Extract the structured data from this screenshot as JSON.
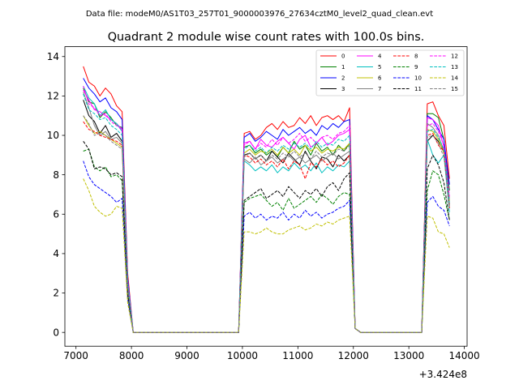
{
  "figure": {
    "suptitle": "Data file: modeM0/AS1T03_257T01_9000003976_27634cztM0_level2_quad_clean.evt"
  },
  "chart_data": {
    "type": "line",
    "title": "Quadrant 2 module wise count rates with 100.0s bins.",
    "xlabel": "",
    "ylabel": "",
    "x_offset_label": "+3.424e8",
    "xlim": [
      6800,
      14050
    ],
    "ylim": [
      -0.7,
      14.5
    ],
    "xticks": [
      7000,
      8000,
      9000,
      10000,
      11000,
      12000,
      13000,
      14000
    ],
    "xtick_labels": [
      "7000",
      "8000",
      "9000",
      "10000",
      "11000",
      "12000",
      "13000",
      "14000"
    ],
    "yticks": [
      0,
      2,
      4,
      6,
      8,
      10,
      12,
      14
    ],
    "ytick_labels": [
      "0",
      "2",
      "4",
      "6",
      "8",
      "10",
      "12",
      "14"
    ],
    "grid": false,
    "legend_position": "upper right",
    "legend_columns": 4,
    "x": [
      7132,
      7232,
      7332,
      7432,
      7532,
      7632,
      7732,
      7832,
      7932,
      8032,
      8132,
      8232,
      8332,
      8432,
      8532,
      8632,
      8732,
      8832,
      8932,
      9032,
      9132,
      9232,
      9332,
      9432,
      9532,
      9632,
      9732,
      9832,
      9932,
      10032,
      10132,
      10232,
      10332,
      10432,
      10532,
      10632,
      10732,
      10832,
      10932,
      11032,
      11132,
      11232,
      11332,
      11432,
      11532,
      11632,
      11732,
      11832,
      11932,
      12032,
      12132,
      12232,
      12332,
      12432,
      12532,
      12632,
      12732,
      12832,
      12932,
      13032,
      13132,
      13232,
      13332,
      13432,
      13532,
      13632,
      13732
    ],
    "series": [
      {
        "name": "0",
        "color": "#ff0000",
        "dash": "solid",
        "values": [
          13.5,
          12.7,
          12.5,
          12.0,
          12.4,
          12.1,
          11.5,
          11.2,
          3.0,
          0,
          0,
          0,
          0,
          0,
          0,
          0,
          0,
          0,
          0,
          0,
          0,
          0,
          0,
          0,
          0,
          0,
          0,
          0,
          0,
          10.1,
          10.2,
          9.8,
          10.0,
          10.4,
          10.6,
          10.3,
          10.7,
          10.4,
          10.5,
          10.9,
          10.6,
          11.0,
          10.5,
          10.9,
          11.0,
          10.8,
          11.0,
          10.7,
          11.4,
          0.2,
          0,
          0,
          0,
          0,
          0,
          0,
          0,
          0,
          0,
          0,
          0,
          0,
          11.6,
          11.7,
          11.0,
          10.5,
          7.8
        ]
      },
      {
        "name": "1",
        "color": "#008000",
        "dash": "solid",
        "values": [
          12.4,
          11.7,
          11.6,
          10.9,
          11.2,
          10.9,
          10.5,
          10.4,
          2.5,
          0,
          0,
          0,
          0,
          0,
          0,
          0,
          0,
          0,
          0,
          0,
          0,
          0,
          0,
          0,
          0,
          0,
          0,
          0,
          0,
          9.4,
          9.5,
          9.1,
          9.3,
          9.0,
          9.2,
          8.9,
          9.4,
          9.1,
          9.7,
          9.3,
          9.5,
          9.0,
          9.6,
          9.2,
          9.4,
          9.0,
          9.5,
          9.2,
          9.6,
          0.2,
          0,
          0,
          0,
          0,
          0,
          0,
          0,
          0,
          0,
          0,
          0,
          0,
          11.1,
          11.1,
          10.9,
          9.8,
          7.2
        ]
      },
      {
        "name": "2",
        "color": "#0000ff",
        "dash": "solid",
        "values": [
          12.9,
          12.4,
          12.1,
          11.7,
          11.9,
          11.4,
          11.2,
          10.8,
          2.8,
          0,
          0,
          0,
          0,
          0,
          0,
          0,
          0,
          0,
          0,
          0,
          0,
          0,
          0,
          0,
          0,
          0,
          0,
          0,
          0,
          9.9,
          10.1,
          9.7,
          9.9,
          10.2,
          10.0,
          9.8,
          10.3,
          10.0,
          10.2,
          10.4,
          10.1,
          10.3,
          10.0,
          10.5,
          10.3,
          10.6,
          10.4,
          10.7,
          10.8,
          0.2,
          0,
          0,
          0,
          0,
          0,
          0,
          0,
          0,
          0,
          0,
          0,
          0,
          11.0,
          10.8,
          10.3,
          9.8,
          7.5
        ]
      },
      {
        "name": "3",
        "color": "#000000",
        "dash": "solid",
        "values": [
          11.8,
          11.0,
          10.7,
          10.1,
          10.5,
          9.9,
          10.1,
          9.7,
          2.4,
          0,
          0,
          0,
          0,
          0,
          0,
          0,
          0,
          0,
          0,
          0,
          0,
          0,
          0,
          0,
          0,
          0,
          0,
          0,
          0,
          9.0,
          9.1,
          8.8,
          9.0,
          8.7,
          9.2,
          8.9,
          8.6,
          9.1,
          8.8,
          8.5,
          9.2,
          8.7,
          8.3,
          8.9,
          8.8,
          8.4,
          9.0,
          8.7,
          9.0,
          0.2,
          0,
          0,
          0,
          0,
          0,
          0,
          0,
          0,
          0,
          0,
          0,
          0,
          9.7,
          10.0,
          9.7,
          9.2,
          6.5
        ]
      },
      {
        "name": "4",
        "color": "#ff00ff",
        "dash": "solid",
        "values": [
          12.3,
          11.8,
          11.3,
          11.2,
          11.0,
          10.8,
          10.6,
          10.3,
          2.6,
          0,
          0,
          0,
          0,
          0,
          0,
          0,
          0,
          0,
          0,
          0,
          0,
          0,
          0,
          0,
          0,
          0,
          0,
          0,
          0,
          9.6,
          9.7,
          9.3,
          9.8,
          9.5,
          9.4,
          9.7,
          9.9,
          9.6,
          9.3,
          9.8,
          10.0,
          9.4,
          9.6,
          9.9,
          9.5,
          9.7,
          10.0,
          10.1,
          10.3,
          0.2,
          0,
          0,
          0,
          0,
          0,
          0,
          0,
          0,
          0,
          0,
          0,
          0,
          10.9,
          10.8,
          10.5,
          9.4,
          6.8
        ]
      },
      {
        "name": "5",
        "color": "#00c0c0",
        "dash": "solid",
        "values": [
          12.5,
          11.9,
          11.6,
          11.0,
          11.3,
          10.8,
          10.6,
          10.2,
          2.6,
          0,
          0,
          0,
          0,
          0,
          0,
          0,
          0,
          0,
          0,
          0,
          0,
          0,
          0,
          0,
          0,
          0,
          0,
          0,
          0,
          8.7,
          8.5,
          8.2,
          8.4,
          8.2,
          8.5,
          8.1,
          8.4,
          8.2,
          8.6,
          8.3,
          8.5,
          8.2,
          8.6,
          8.1,
          8.4,
          8.2,
          8.5,
          8.4,
          8.7,
          0.2,
          0,
          0,
          0,
          0,
          0,
          0,
          0,
          0,
          0,
          0,
          0,
          0,
          9.8,
          9.0,
          8.6,
          9.0,
          6.1
        ]
      },
      {
        "name": "6",
        "color": "#c0c000",
        "dash": "solid",
        "values": [
          11.0,
          10.5,
          10.1,
          10.2,
          10.0,
          9.8,
          9.6,
          9.4,
          2.3,
          0,
          0,
          0,
          0,
          0,
          0,
          0,
          0,
          0,
          0,
          0,
          0,
          0,
          0,
          0,
          0,
          0,
          0,
          0,
          0,
          9.1,
          9.3,
          9.0,
          9.2,
          9.1,
          9.3,
          9.0,
          9.4,
          9.1,
          9.3,
          9.0,
          9.5,
          9.2,
          9.4,
          9.1,
          9.3,
          9.2,
          9.4,
          9.3,
          9.6,
          0.2,
          0,
          0,
          0,
          0,
          0,
          0,
          0,
          0,
          0,
          0,
          0,
          0,
          10.3,
          10.2,
          9.8,
          9.1,
          6.7
        ]
      },
      {
        "name": "7",
        "color": "#808080",
        "dash": "solid",
        "values": [
          12.2,
          11.4,
          10.5,
          10.0,
          10.2,
          9.8,
          9.9,
          9.6,
          2.4,
          0,
          0,
          0,
          0,
          0,
          0,
          0,
          0,
          0,
          0,
          0,
          0,
          0,
          0,
          0,
          0,
          0,
          0,
          0,
          0,
          8.8,
          8.6,
          8.9,
          8.5,
          8.7,
          8.9,
          8.6,
          8.8,
          9.0,
          8.7,
          8.9,
          8.6,
          8.8,
          9.0,
          8.7,
          8.9,
          9.1,
          8.8,
          9.0,
          9.2,
          0.2,
          0,
          0,
          0,
          0,
          0,
          0,
          0,
          0,
          0,
          0,
          0,
          0,
          10.6,
          10.4,
          10.0,
          9.2,
          6.4
        ]
      },
      {
        "name": "8",
        "color": "#ff0000",
        "dash": "dashed",
        "values": [
          10.7,
          10.3,
          10.2,
          10.0,
          9.9,
          9.8,
          9.7,
          9.5,
          2.4,
          0,
          0,
          0,
          0,
          0,
          0,
          0,
          0,
          0,
          0,
          0,
          0,
          0,
          0,
          0,
          0,
          0,
          0,
          0,
          0,
          9.0,
          8.9,
          8.6,
          8.8,
          8.5,
          8.7,
          8.4,
          8.8,
          8.3,
          8.7,
          8.5,
          7.8,
          8.6,
          8.4,
          8.8,
          8.5,
          8.7,
          8.4,
          8.6,
          9.0,
          0.2,
          0,
          0,
          0,
          0,
          0,
          0,
          0,
          0,
          0,
          0,
          0,
          0,
          10.0,
          10.1,
          9.5,
          9.2,
          6.3
        ]
      },
      {
        "name": "9",
        "color": "#008000",
        "dash": "dashed",
        "values": [
          9.2,
          9.3,
          8.4,
          8.2,
          8.4,
          7.9,
          8.0,
          7.7,
          1.9,
          0,
          0,
          0,
          0,
          0,
          0,
          0,
          0,
          0,
          0,
          0,
          0,
          0,
          0,
          0,
          0,
          0,
          0,
          0,
          0,
          6.6,
          6.8,
          6.9,
          7.0,
          6.7,
          6.4,
          6.6,
          6.2,
          6.8,
          6.3,
          6.5,
          6.7,
          6.9,
          6.6,
          7.0,
          6.8,
          6.5,
          6.9,
          7.1,
          7.0,
          0.2,
          0,
          0,
          0,
          0,
          0,
          0,
          0,
          0,
          0,
          0,
          0,
          0,
          7.2,
          8.2,
          8.0,
          7.0,
          5.7
        ]
      },
      {
        "name": "10",
        "color": "#0000ff",
        "dash": "dashed",
        "values": [
          8.7,
          7.9,
          7.5,
          7.3,
          7.1,
          6.9,
          6.6,
          6.8,
          1.7,
          0,
          0,
          0,
          0,
          0,
          0,
          0,
          0,
          0,
          0,
          0,
          0,
          0,
          0,
          0,
          0,
          0,
          0,
          0,
          0,
          5.9,
          6.1,
          5.8,
          6.0,
          5.7,
          5.9,
          5.8,
          6.1,
          5.7,
          6.0,
          5.8,
          6.2,
          5.9,
          6.1,
          5.8,
          6.0,
          6.1,
          6.3,
          6.4,
          6.7,
          0.2,
          0,
          0,
          0,
          0,
          0,
          0,
          0,
          0,
          0,
          0,
          0,
          0,
          6.6,
          6.9,
          6.4,
          6.2,
          5.4
        ]
      },
      {
        "name": "11",
        "color": "#000000",
        "dash": "dashed",
        "values": [
          9.7,
          9.3,
          8.3,
          8.4,
          8.3,
          8.0,
          8.1,
          7.9,
          2.0,
          0,
          0,
          0,
          0,
          0,
          0,
          0,
          0,
          0,
          0,
          0,
          0,
          0,
          0,
          0,
          0,
          0,
          0,
          0,
          0,
          6.7,
          6.9,
          7.1,
          7.3,
          6.8,
          7.0,
          7.2,
          6.9,
          7.4,
          7.1,
          6.8,
          7.2,
          7.0,
          7.3,
          6.9,
          7.4,
          7.6,
          7.2,
          7.8,
          8.1,
          0.2,
          0,
          0,
          0,
          0,
          0,
          0,
          0,
          0,
          0,
          0,
          0,
          0,
          8.3,
          9.0,
          8.5,
          7.6,
          5.7
        ]
      },
      {
        "name": "12",
        "color": "#ff00ff",
        "dash": "dashed",
        "values": [
          12.5,
          11.6,
          11.4,
          11.0,
          11.1,
          10.7,
          10.5,
          10.3,
          2.6,
          0,
          0,
          0,
          0,
          0,
          0,
          0,
          0,
          0,
          0,
          0,
          0,
          0,
          0,
          0,
          0,
          0,
          0,
          0,
          0,
          9.5,
          9.7,
          9.3,
          9.6,
          9.4,
          9.8,
          9.5,
          9.9,
          9.6,
          9.8,
          10.1,
          9.7,
          9.9,
          9.6,
          9.9,
          10.0,
          9.8,
          10.1,
          10.2,
          10.5,
          0.2,
          0,
          0,
          0,
          0,
          0,
          0,
          0,
          0,
          0,
          0,
          0,
          0,
          10.5,
          10.6,
          10.2,
          9.5,
          6.9
        ]
      },
      {
        "name": "13",
        "color": "#00c0c0",
        "dash": "dashed",
        "values": [
          12.1,
          11.3,
          11.1,
          10.8,
          10.9,
          10.5,
          10.3,
          10.0,
          2.5,
          0,
          0,
          0,
          0,
          0,
          0,
          0,
          0,
          0,
          0,
          0,
          0,
          0,
          0,
          0,
          0,
          0,
          0,
          0,
          0,
          9.3,
          9.5,
          9.2,
          9.4,
          9.1,
          9.4,
          9.2,
          9.5,
          9.3,
          9.6,
          9.4,
          9.6,
          9.3,
          9.7,
          9.4,
          9.6,
          9.5,
          9.8,
          9.7,
          10.0,
          0.2,
          0,
          0,
          0,
          0,
          0,
          0,
          0,
          0,
          0,
          0,
          0,
          0,
          10.2,
          10.3,
          9.9,
          9.3,
          6.6
        ]
      },
      {
        "name": "14",
        "color": "#c0c000",
        "dash": "dashed",
        "values": [
          7.8,
          7.2,
          6.4,
          6.1,
          5.9,
          6.0,
          6.4,
          6.3,
          1.5,
          0,
          0,
          0,
          0,
          0,
          0,
          0,
          0,
          0,
          0,
          0,
          0,
          0,
          0,
          0,
          0,
          0,
          0,
          0,
          0,
          5.1,
          5.1,
          5.0,
          5.1,
          5.3,
          5.1,
          5.0,
          5.0,
          5.2,
          5.3,
          5.4,
          5.2,
          5.3,
          5.5,
          5.4,
          5.6,
          5.5,
          5.7,
          5.8,
          5.9,
          0.2,
          0,
          0,
          0,
          0,
          0,
          0,
          0,
          0,
          0,
          0,
          0,
          0,
          5.9,
          5.8,
          5.1,
          5.0,
          4.3
        ]
      },
      {
        "name": "15",
        "color": "#808080",
        "dash": "dashed",
        "values": [
          11.0,
          10.6,
          10.0,
          10.1,
          10.0,
          9.7,
          9.5,
          9.3,
          2.3,
          0,
          0,
          0,
          0,
          0,
          0,
          0,
          0,
          0,
          0,
          0,
          0,
          0,
          0,
          0,
          0,
          0,
          0,
          0,
          0,
          8.9,
          9.1,
          8.8,
          9.0,
          8.7,
          9.0,
          8.8,
          9.1,
          8.9,
          9.2,
          8.9,
          9.1,
          8.8,
          9.2,
          8.9,
          9.1,
          9.0,
          9.3,
          9.2,
          9.5,
          0.2,
          0,
          0,
          0,
          0,
          0,
          0,
          0,
          0,
          0,
          0,
          0,
          0,
          9.9,
          10.0,
          9.6,
          8.9,
          6.4
        ]
      }
    ]
  }
}
